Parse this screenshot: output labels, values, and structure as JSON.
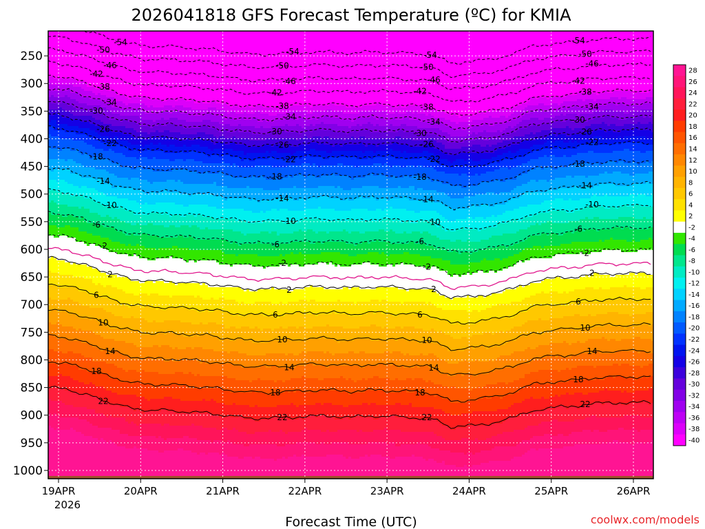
{
  "chart_data": {
    "type": "heatmap",
    "title": "2026041818 GFS Forecast Temperature (ºC) for KMIA",
    "xlabel": "Forecast Time (UTC)",
    "ylabel": "",
    "x_ticks": [
      "19APR",
      "20APR",
      "21APR",
      "22APR",
      "23APR",
      "24APR",
      "25APR",
      "26APR"
    ],
    "x_year_label": "2026",
    "y_ticks": [
      250,
      300,
      350,
      400,
      450,
      500,
      550,
      600,
      650,
      700,
      750,
      800,
      850,
      900,
      950,
      1000
    ],
    "y_range": [
      205,
      1015
    ],
    "y_scale": "pressure (hPa), decreasing upward",
    "colorbar": {
      "labels": [
        28,
        26,
        24,
        22,
        20,
        18,
        16,
        14,
        12,
        10,
        8,
        6,
        4,
        2,
        -2,
        -4,
        -6,
        -8,
        -10,
        -12,
        -14,
        -16,
        -18,
        -20,
        -22,
        -24,
        -26,
        -28,
        -30,
        -32,
        -34,
        -36,
        -38,
        -40
      ],
      "colors": [
        "#ff1493",
        "#ff1478",
        "#ff145a",
        "#ff1e3c",
        "#ff1e1e",
        "#ff3c00",
        "#ff5500",
        "#ff6e00",
        "#ff8700",
        "#ffa000",
        "#ffb400",
        "#ffc800",
        "#ffe100",
        "#ffff00",
        "#ffffff",
        "#32e600",
        "#00dc50",
        "#00e68c",
        "#00ebc3",
        "#00f0f0",
        "#00d2ff",
        "#00aaff",
        "#0082ff",
        "#005aff",
        "#0032ff",
        "#0014f0",
        "#1400e6",
        "#3c00dc",
        "#6400dc",
        "#8200e6",
        "#a000f0",
        "#be00f5",
        "#dc00fa",
        "#ff00ff"
      ]
    },
    "freezing_level_hpa": [
      555,
      565,
      585,
      610,
      630,
      640,
      640,
      645,
      650,
      660,
      668,
      668,
      665,
      660,
      660,
      665,
      660,
      662,
      665,
      670,
      700,
      695,
      685,
      668,
      640,
      630,
      625,
      615,
      612,
      612,
      610
    ],
    "surface_level_hpa": 1010,
    "contour_levels": [
      -54,
      -50,
      -46,
      -42,
      -38,
      -34,
      -30,
      -26,
      -22,
      -18,
      -14,
      -10,
      -6,
      -2,
      2,
      6,
      10,
      14,
      18,
      22
    ],
    "contour_labels_shown": [
      "-54",
      "-50",
      "-46",
      "-42",
      "-38",
      "-34",
      "-30",
      "-26",
      "-22",
      "-18",
      "-14",
      "-10",
      "-6",
      "-2",
      "2",
      "6",
      "10",
      "14",
      "18",
      "22"
    ],
    "grid": true
  },
  "credit": "coolwx.com/models"
}
